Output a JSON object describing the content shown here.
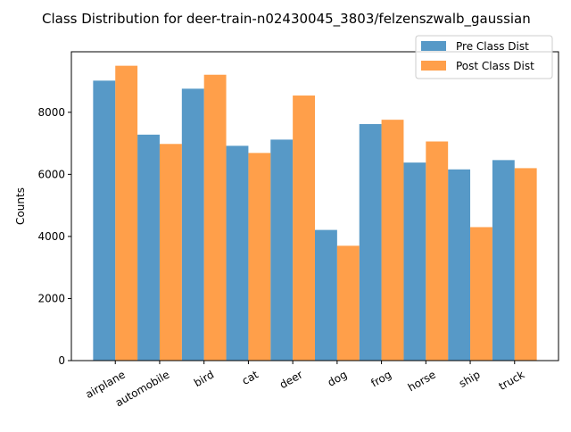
{
  "chart_data": {
    "type": "bar",
    "title": "Class Distribution for deer-train-n02430045_3803/felzenszwalb_gaussian",
    "xlabel": "",
    "ylabel": "Counts",
    "categories": [
      "airplane",
      "automobile",
      "bird",
      "cat",
      "deer",
      "dog",
      "frog",
      "horse",
      "ship",
      "truck"
    ],
    "series": [
      {
        "name": "Pre Class Dist",
        "color": "#1f77b4",
        "values": [
          9020,
          7280,
          8760,
          6920,
          7120,
          4210,
          7620,
          6380,
          6160,
          6460
        ]
      },
      {
        "name": "Post Class Dist",
        "color": "#ff7f0e",
        "values": [
          9500,
          6980,
          9210,
          6690,
          8540,
          3700,
          7760,
          7060,
          4300,
          6200
        ]
      }
    ],
    "ylim": [
      0,
      9950
    ],
    "yticks": [
      0,
      2000,
      4000,
      6000,
      8000
    ],
    "grid": false,
    "legend": "top-right"
  }
}
